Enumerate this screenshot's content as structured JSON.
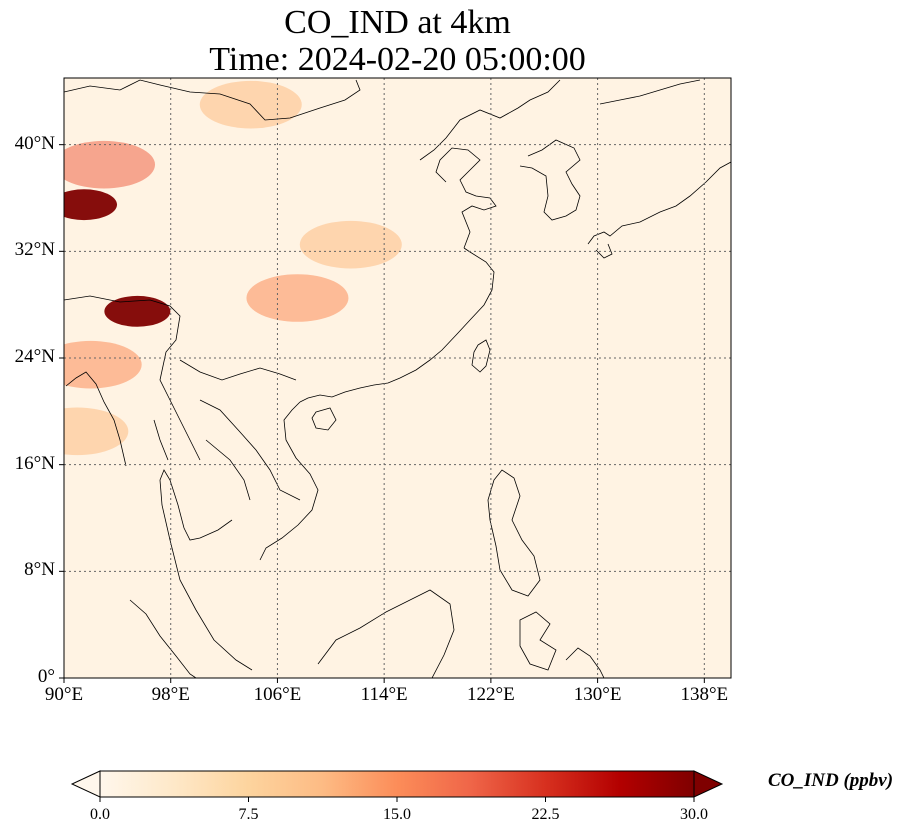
{
  "title": {
    "line1": "CO_IND at 4km",
    "line2": "Time: 2024-02-20 05:00:00"
  },
  "axes": {
    "lat_ticks": [
      "40°N",
      "32°N",
      "24°N",
      "16°N",
      "8°N",
      "0°"
    ],
    "lon_ticks": [
      "90°E",
      "98°E",
      "106°E",
      "114°E",
      "122°E",
      "130°E",
      "138°E"
    ],
    "lat_values": [
      40,
      32,
      24,
      16,
      8,
      0
    ],
    "lon_values": [
      90,
      98,
      106,
      114,
      122,
      130,
      138
    ],
    "lon_range": [
      90,
      140
    ],
    "lat_range": [
      0,
      45
    ],
    "grid": "dotted"
  },
  "colorbar": {
    "label": "CO_IND (ppbv)",
    "ticks": [
      "0.0",
      "7.5",
      "15.0",
      "22.5",
      "30.0"
    ],
    "tick_values": [
      0,
      7.5,
      15,
      22.5,
      30
    ],
    "range": [
      0,
      30
    ],
    "colormap": "OrRd",
    "colors": [
      "#fff7ec",
      "#fee8c8",
      "#fdd49e",
      "#fdbb84",
      "#fc8d59",
      "#ef6548",
      "#d7301f",
      "#b30000",
      "#7f0000"
    ],
    "extend": "both"
  },
  "field": {
    "variable": "CO_IND",
    "hotspots": [
      {
        "lon": 91.5,
        "lat": 35.5,
        "value": 30
      },
      {
        "lon": 95.5,
        "lat": 27.5,
        "value": 30
      },
      {
        "lon": 93,
        "lat": 38.5,
        "value": 18
      },
      {
        "lon": 107.5,
        "lat": 28.5,
        "value": 15
      },
      {
        "lon": 111.5,
        "lat": 32.5,
        "value": 12
      },
      {
        "lon": 104,
        "lat": 43,
        "value": 11
      },
      {
        "lon": 92,
        "lat": 23.5,
        "value": 14
      },
      {
        "lon": 91,
        "lat": 18.5,
        "value": 13
      }
    ]
  }
}
